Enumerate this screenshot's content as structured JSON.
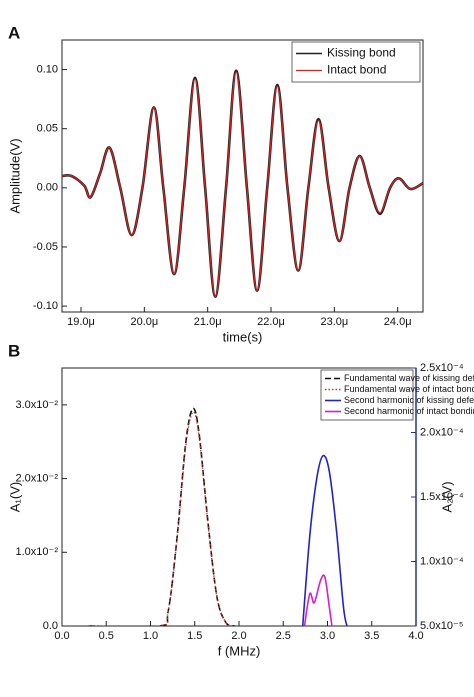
{
  "chart_data": [
    {
      "type": "line",
      "panel": "A",
      "xlabel": "time(s)",
      "ylabel": "Amplitude(V)",
      "xlim": [
        18.7,
        24.4
      ],
      "ylim": [
        -0.105,
        0.125
      ],
      "xticks": [
        {
          "value": 19.0,
          "label": "19.0μ"
        },
        {
          "value": 20.0,
          "label": "20.0μ"
        },
        {
          "value": 21.0,
          "label": "21.0μ"
        },
        {
          "value": 22.0,
          "label": "22.0μ"
        },
        {
          "value": 23.0,
          "label": "23.0μ"
        },
        {
          "value": 24.0,
          "label": "24.0μ"
        }
      ],
      "yticks": [
        {
          "value": -0.1,
          "label": "-0.10"
        },
        {
          "value": -0.05,
          "label": "-0.05"
        },
        {
          "value": 0,
          "label": "0.00"
        },
        {
          "value": 0.05,
          "label": "0.05"
        },
        {
          "value": 0.1,
          "label": "0.10"
        }
      ],
      "legend": "upper right",
      "x": [
        18.7,
        18.85,
        19.05,
        19.15,
        19.3,
        19.45,
        19.62,
        19.8,
        19.97,
        20.15,
        20.3,
        20.47,
        20.63,
        20.8,
        20.96,
        21.12,
        21.29,
        21.45,
        21.62,
        21.78,
        21.94,
        22.1,
        22.26,
        22.43,
        22.59,
        22.75,
        22.91,
        23.08,
        23.24,
        23.4,
        23.56,
        23.72,
        23.88,
        24.02,
        24.2,
        24.4
      ],
      "series": [
        {
          "name": "Kissing bond",
          "color": "#222222",
          "style": "solid",
          "width": 2.6,
          "values": [
            0.01,
            0.01,
            0.002,
            -0.008,
            0.012,
            0.034,
            0.0,
            -0.04,
            0.0,
            0.068,
            0.0,
            -0.073,
            0.0,
            0.093,
            0.0,
            -0.092,
            0.0,
            0.099,
            0.0,
            -0.087,
            0.0,
            0.087,
            0.0,
            -0.07,
            0.0,
            0.058,
            0.0,
            -0.045,
            0.0,
            0.027,
            0.0,
            -0.022,
            0.0,
            0.008,
            -0.001,
            0.004
          ]
        },
        {
          "name": "Intact bond",
          "color": "#cc2222",
          "style": "solid",
          "width": 1.3,
          "values": [
            0.01,
            0.01,
            0.002,
            -0.008,
            0.012,
            0.034,
            0.0,
            -0.04,
            0.0,
            0.068,
            0.0,
            -0.073,
            0.0,
            0.092,
            0.0,
            -0.092,
            0.0,
            0.098,
            0.0,
            -0.087,
            0.0,
            0.086,
            0.0,
            -0.07,
            0.0,
            0.057,
            0.0,
            -0.045,
            0.0,
            0.027,
            0.0,
            -0.021,
            0.0,
            0.008,
            -0.001,
            0.004
          ]
        }
      ]
    },
    {
      "type": "line",
      "panel": "B",
      "xlabel": "f (MHz)",
      "ylabel": "A₁(V)",
      "y2label": "A₂(V)",
      "xlim": [
        0,
        4.0
      ],
      "ylim": [
        0,
        0.035
      ],
      "y2lim": [
        5e-05,
        0.00025
      ],
      "xticks": [
        {
          "value": 0,
          "label": "0.0"
        },
        0.5,
        {
          "value": 1,
          "label": "1.0"
        },
        1.5,
        {
          "value": 2,
          "label": "2.0"
        },
        2.5,
        {
          "value": 3,
          "label": "3.0"
        },
        3.5,
        {
          "value": 4,
          "label": "4.0"
        }
      ],
      "yticks": [
        {
          "value": 0,
          "label": "0.0"
        },
        {
          "value": 0.01,
          "label": "1.0x10⁻²"
        },
        {
          "value": 0.02,
          "label": "2.0x10⁻²"
        },
        {
          "value": 0.03,
          "label": "3.0x10⁻²"
        }
      ],
      "y2ticks": [
        {
          "value": 5e-05,
          "label": "5.0x10⁻⁵"
        },
        {
          "value": 0.0001,
          "label": "1.0x10⁻⁴"
        },
        {
          "value": 0.00015,
          "label": "1.5x10⁻⁴"
        },
        {
          "value": 0.0002,
          "label": "2.0x10⁻⁴"
        },
        {
          "value": 0.00025,
          "label": "2.5x10⁻⁴"
        }
      ],
      "legend": "upper right",
      "series": [
        {
          "name": "Fundamental wave of kissing defect",
          "color": "#111111",
          "style": "dashed",
          "width": 1.6,
          "x": [
            0.3,
            1.1,
            1.2,
            1.3,
            1.4,
            1.48,
            1.55,
            1.65,
            1.75,
            1.85,
            1.95
          ],
          "values": [
            0,
            0,
            0.002,
            0.012,
            0.025,
            0.0295,
            0.026,
            0.014,
            0.004,
            0.0005,
            0
          ]
        },
        {
          "name": "Fundamental wave of intact bonding",
          "color": "#cc3333",
          "style": "dotted",
          "width": 1.4,
          "x": [
            0.3,
            1.1,
            1.2,
            1.3,
            1.4,
            1.48,
            1.55,
            1.65,
            1.75,
            1.85,
            1.95
          ],
          "values": [
            0,
            0,
            0.002,
            0.0118,
            0.0246,
            0.029,
            0.0256,
            0.0138,
            0.004,
            0.0005,
            0
          ]
        },
        {
          "name": "Second harmonic of kissing defect",
          "color": "#2222cc",
          "style": "solid",
          "width": 1.6,
          "axis": "y2",
          "x": [
            2.72,
            2.8,
            2.88,
            2.95,
            3.02,
            3.1,
            3.18,
            3.22
          ],
          "values": [
            5e-05,
            0.00012,
            0.000165,
            0.000182,
            0.00017,
            0.000125,
            6.5e-05,
            5e-05
          ]
        },
        {
          "name": "Second harmonic of intact bonding",
          "color": "#d020d0",
          "style": "solid",
          "width": 1.6,
          "axis": "y2",
          "x": [
            2.74,
            2.8,
            2.85,
            2.92,
            2.97,
            3.02,
            3.05
          ],
          "values": [
            5e-05,
            7.5e-05,
            6.8e-05,
            8.5e-05,
            8.8e-05,
            6.5e-05,
            5e-05
          ]
        }
      ]
    }
  ]
}
